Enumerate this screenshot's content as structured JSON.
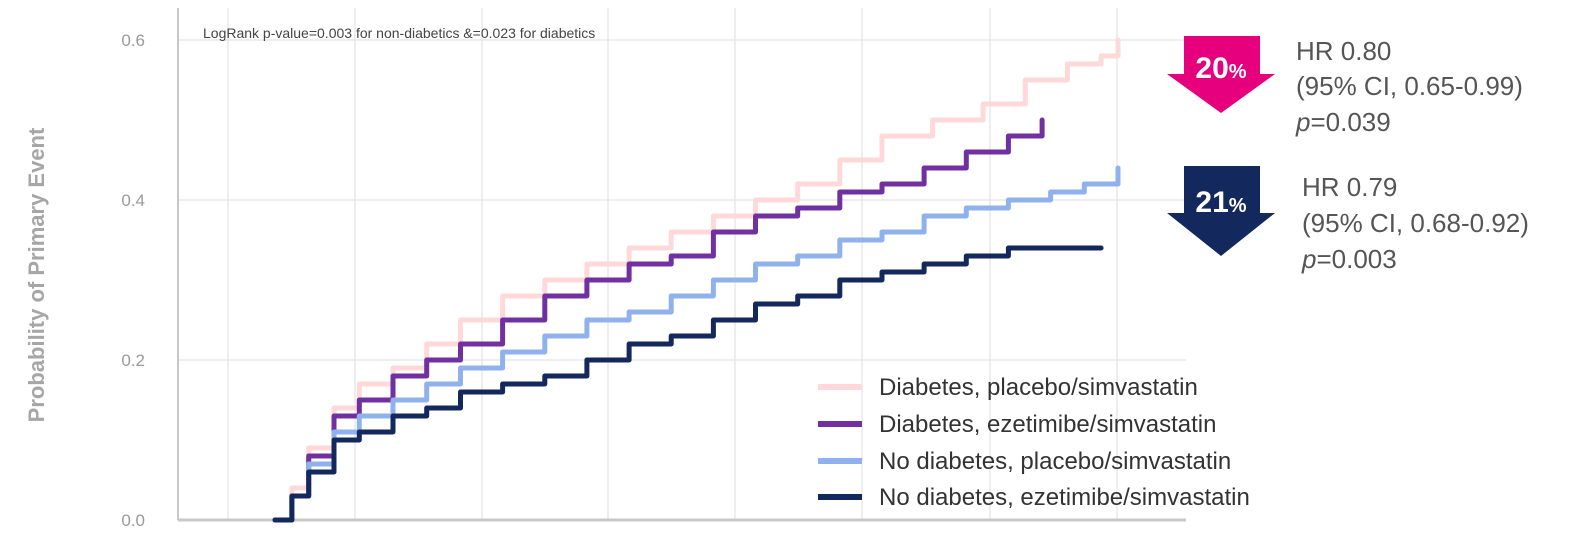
{
  "chart_data": {
    "type": "line",
    "title": "",
    "xlabel": "",
    "ylabel": "Probability of Primary Event",
    "ylim": [
      0.0,
      0.6
    ],
    "yticks": [
      "0.0",
      "0.2",
      "0.4",
      "0.6"
    ],
    "x_tick_labels": [],
    "grid": true,
    "legend_position": "bottom-right",
    "annotation": "LogRank p-value=0.003 for non-diabetics &=0.023 for diabetics",
    "series": [
      {
        "name": "Diabetes, placebo/simvastatin",
        "color": "#ffd9d9",
        "points": [
          [
            0.0,
            0.0
          ],
          [
            0.02,
            0.04
          ],
          [
            0.04,
            0.09
          ],
          [
            0.07,
            0.14
          ],
          [
            0.1,
            0.17
          ],
          [
            0.14,
            0.19
          ],
          [
            0.18,
            0.22
          ],
          [
            0.22,
            0.25
          ],
          [
            0.27,
            0.28
          ],
          [
            0.32,
            0.3
          ],
          [
            0.37,
            0.32
          ],
          [
            0.42,
            0.34
          ],
          [
            0.47,
            0.36
          ],
          [
            0.52,
            0.38
          ],
          [
            0.57,
            0.4
          ],
          [
            0.62,
            0.42
          ],
          [
            0.67,
            0.45
          ],
          [
            0.72,
            0.48
          ],
          [
            0.78,
            0.5
          ],
          [
            0.84,
            0.52
          ],
          [
            0.89,
            0.55
          ],
          [
            0.94,
            0.57
          ],
          [
            0.98,
            0.58
          ],
          [
            1.0,
            0.6
          ]
        ]
      },
      {
        "name": "Diabetes, ezetimibe/simvastatin",
        "color": "#7030a0",
        "points": [
          [
            0.0,
            0.0
          ],
          [
            0.02,
            0.03
          ],
          [
            0.04,
            0.08
          ],
          [
            0.07,
            0.13
          ],
          [
            0.1,
            0.15
          ],
          [
            0.14,
            0.18
          ],
          [
            0.18,
            0.2
          ],
          [
            0.22,
            0.22
          ],
          [
            0.27,
            0.25
          ],
          [
            0.32,
            0.28
          ],
          [
            0.37,
            0.3
          ],
          [
            0.42,
            0.32
          ],
          [
            0.47,
            0.33
          ],
          [
            0.52,
            0.36
          ],
          [
            0.57,
            0.38
          ],
          [
            0.62,
            0.39
          ],
          [
            0.67,
            0.41
          ],
          [
            0.72,
            0.42
          ],
          [
            0.77,
            0.44
          ],
          [
            0.82,
            0.46
          ],
          [
            0.87,
            0.48
          ],
          [
            0.91,
            0.5
          ]
        ]
      },
      {
        "name": "No diabetes, placebo/simvastatin",
        "color": "#8fb2ee",
        "points": [
          [
            0.0,
            0.0
          ],
          [
            0.02,
            0.03
          ],
          [
            0.04,
            0.07
          ],
          [
            0.07,
            0.11
          ],
          [
            0.1,
            0.13
          ],
          [
            0.14,
            0.15
          ],
          [
            0.18,
            0.17
          ],
          [
            0.22,
            0.19
          ],
          [
            0.27,
            0.21
          ],
          [
            0.32,
            0.23
          ],
          [
            0.37,
            0.25
          ],
          [
            0.42,
            0.26
          ],
          [
            0.47,
            0.28
          ],
          [
            0.52,
            0.3
          ],
          [
            0.57,
            0.32
          ],
          [
            0.62,
            0.33
          ],
          [
            0.67,
            0.35
          ],
          [
            0.72,
            0.36
          ],
          [
            0.77,
            0.38
          ],
          [
            0.82,
            0.39
          ],
          [
            0.87,
            0.4
          ],
          [
            0.92,
            0.41
          ],
          [
            0.96,
            0.42
          ],
          [
            1.0,
            0.44
          ]
        ]
      },
      {
        "name": "No diabetes, ezetimibe/simvastatin",
        "color": "#13295e",
        "points": [
          [
            0.0,
            0.0
          ],
          [
            0.02,
            0.03
          ],
          [
            0.04,
            0.06
          ],
          [
            0.07,
            0.1
          ],
          [
            0.1,
            0.11
          ],
          [
            0.14,
            0.13
          ],
          [
            0.18,
            0.14
          ],
          [
            0.22,
            0.16
          ],
          [
            0.27,
            0.17
          ],
          [
            0.32,
            0.18
          ],
          [
            0.37,
            0.2
          ],
          [
            0.42,
            0.22
          ],
          [
            0.47,
            0.23
          ],
          [
            0.52,
            0.25
          ],
          [
            0.57,
            0.27
          ],
          [
            0.62,
            0.28
          ],
          [
            0.67,
            0.3
          ],
          [
            0.72,
            0.31
          ],
          [
            0.77,
            0.32
          ],
          [
            0.82,
            0.33
          ],
          [
            0.87,
            0.34
          ],
          [
            0.92,
            0.34
          ],
          [
            0.96,
            0.34
          ],
          [
            0.98,
            0.34
          ]
        ]
      }
    ]
  },
  "callouts": [
    {
      "pct_number": "20",
      "pct_sign": "%",
      "arrow_color": "#e6007e",
      "hr_line": "HR 0.80",
      "ci_line": "(95% CI, 0.65-0.99)",
      "p_letter": "p",
      "p_value": "=0.039"
    },
    {
      "pct_number": "21",
      "pct_sign": "%",
      "arrow_color": "#13295e",
      "hr_line": "HR 0.79",
      "ci_line": "(95% CI, 0.68-0.92)",
      "p_letter": "p",
      "p_value": "=0.003"
    }
  ]
}
